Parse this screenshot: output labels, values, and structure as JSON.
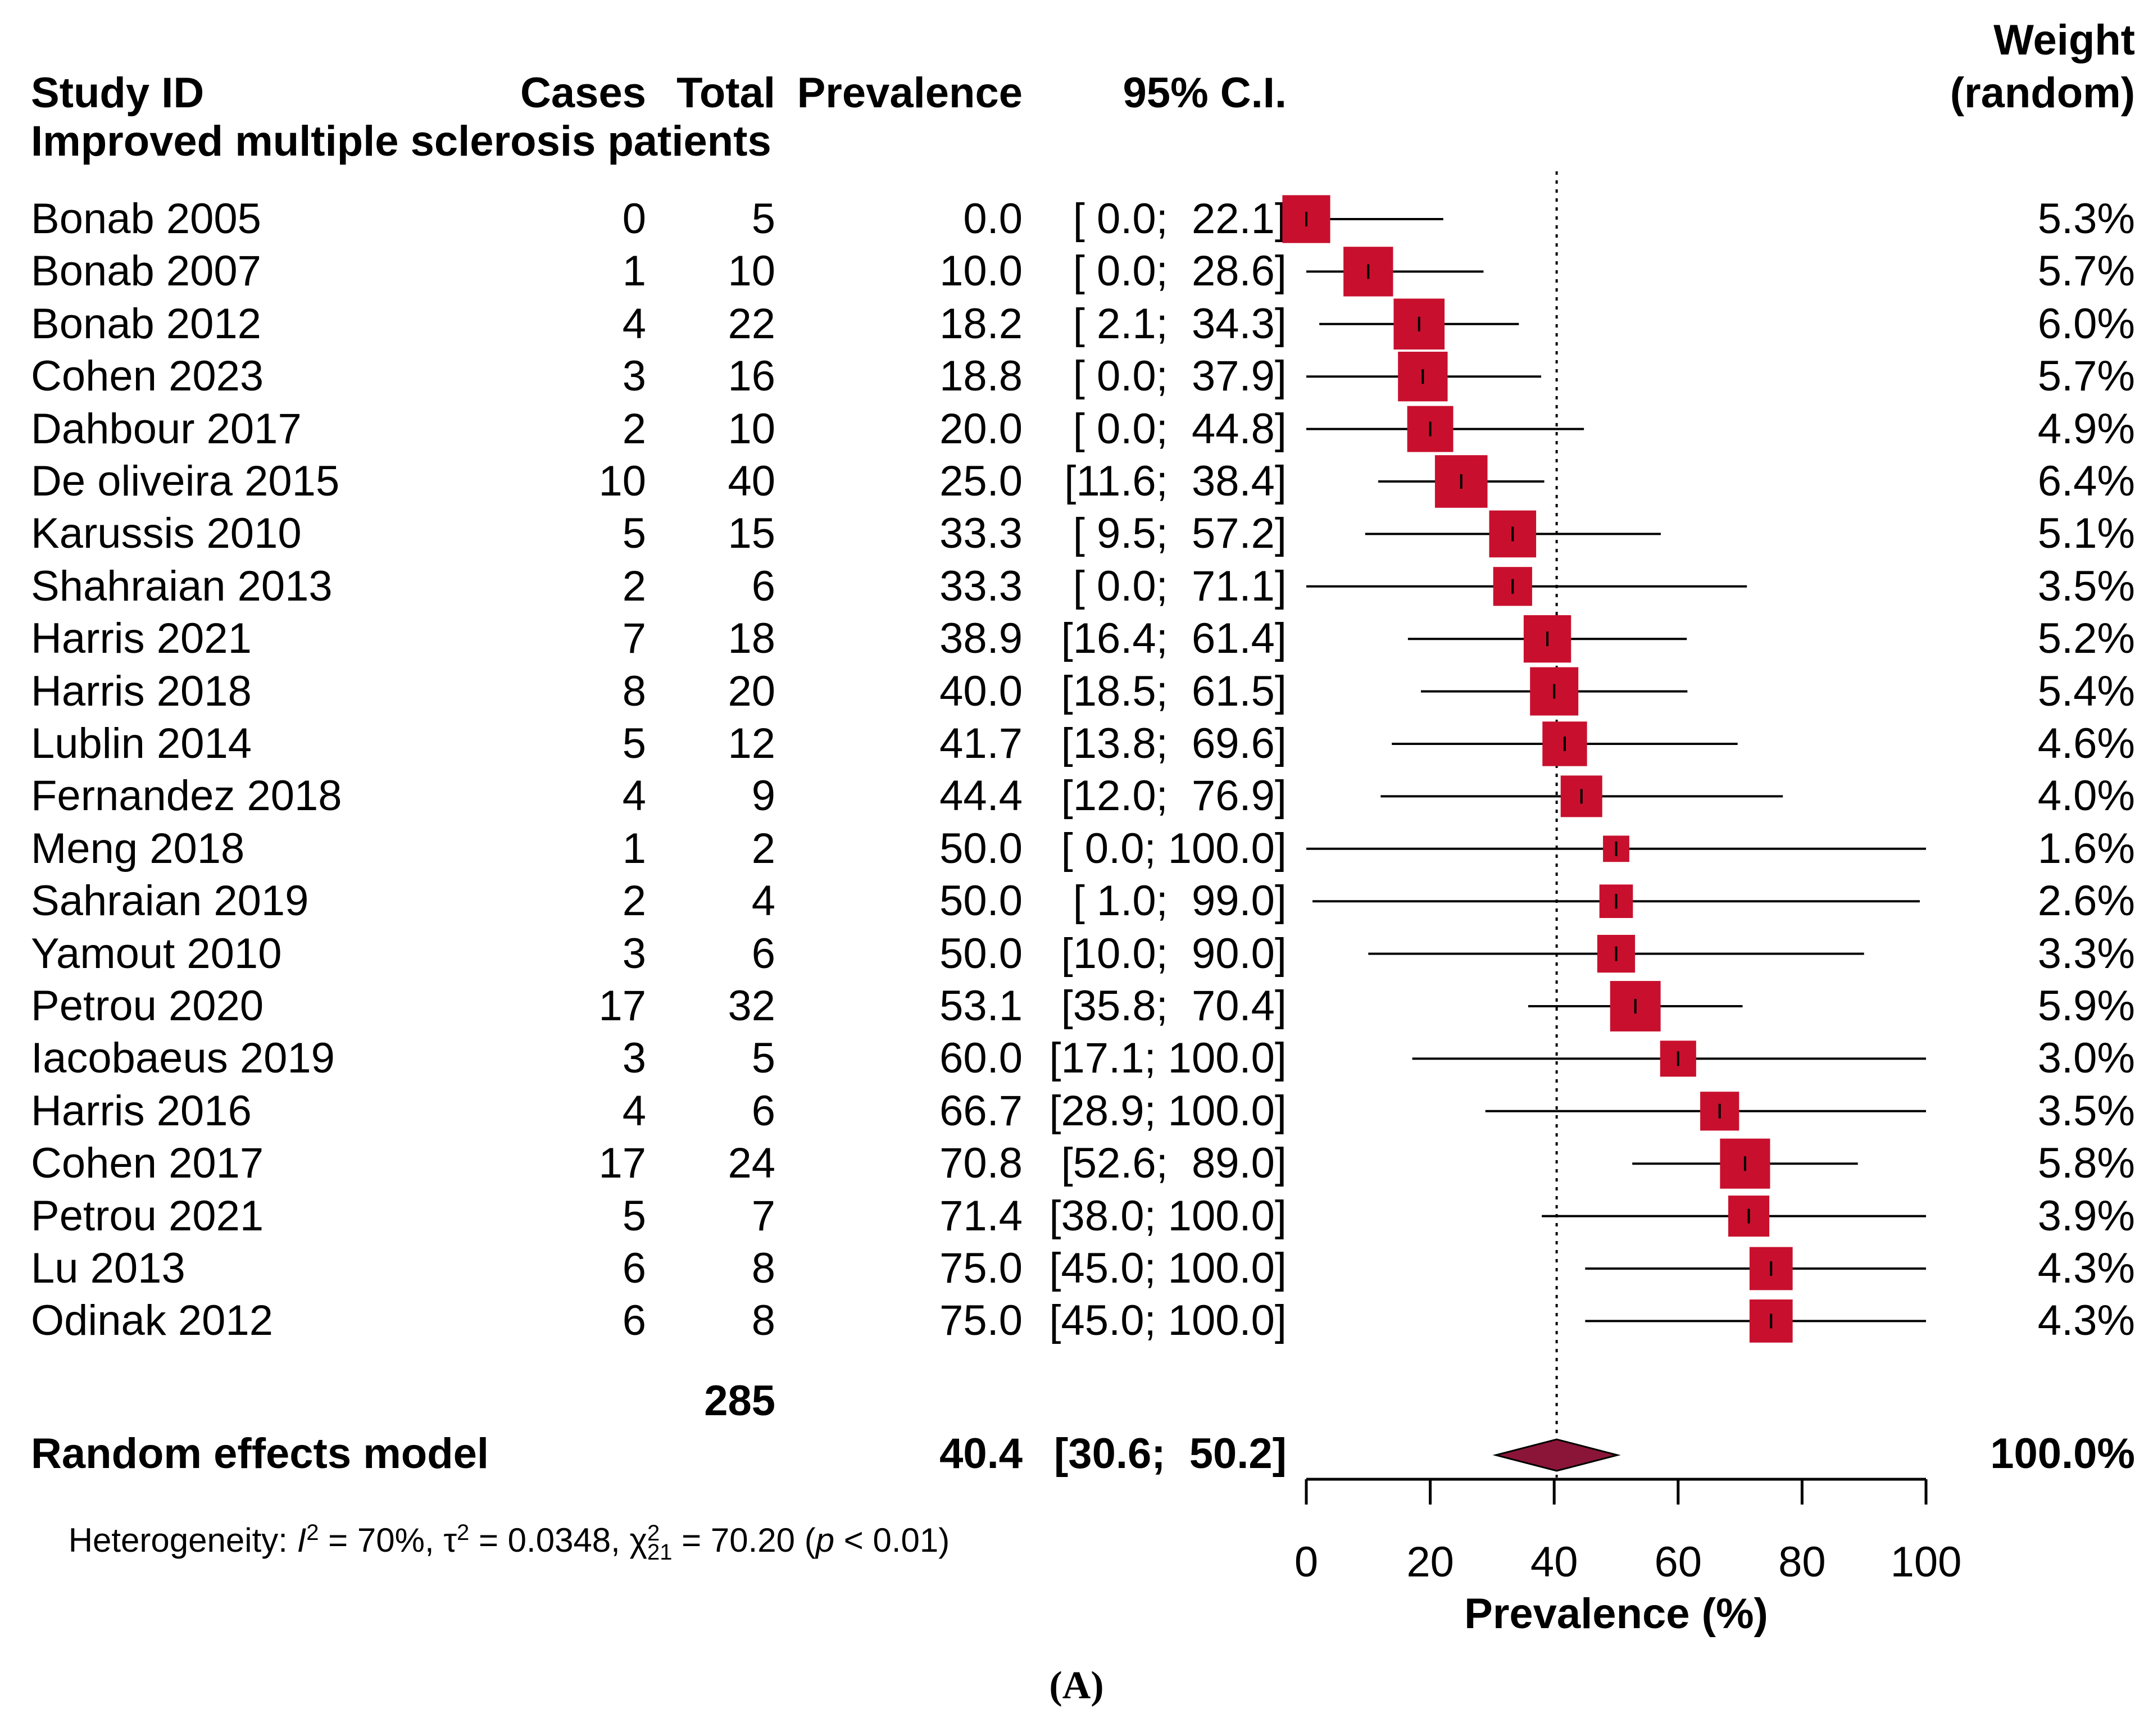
{
  "chart_data": {
    "type": "forest",
    "headers": {
      "study": "Study ID",
      "cases": "Cases",
      "total": "Total",
      "prevalence": "Prevalence",
      "ci": "95% C.I.",
      "weight_line1": "Weight",
      "weight_line2": "(random)"
    },
    "subgroup": "Improved multiple sclerosis patients",
    "studies": [
      {
        "name": "Bonab 2005",
        "cases": "0",
        "total": "5",
        "prev": "0.0",
        "ci": "[ 0.0;  22.1]",
        "weight": "5.3%",
        "est": 0.0,
        "lo": 0.0,
        "hi": 22.1,
        "w": 5.3
      },
      {
        "name": "Bonab 2007",
        "cases": "1",
        "total": "10",
        "prev": "10.0",
        "ci": "[ 0.0;  28.6]",
        "weight": "5.7%",
        "est": 10.0,
        "lo": 0.0,
        "hi": 28.6,
        "w": 5.7
      },
      {
        "name": "Bonab 2012",
        "cases": "4",
        "total": "22",
        "prev": "18.2",
        "ci": "[ 2.1;  34.3]",
        "weight": "6.0%",
        "est": 18.2,
        "lo": 2.1,
        "hi": 34.3,
        "w": 6.0
      },
      {
        "name": "Cohen 2023",
        "cases": "3",
        "total": "16",
        "prev": "18.8",
        "ci": "[ 0.0;  37.9]",
        "weight": "5.7%",
        "est": 18.8,
        "lo": 0.0,
        "hi": 37.9,
        "w": 5.7
      },
      {
        "name": "Dahbour 2017",
        "cases": "2",
        "total": "10",
        "prev": "20.0",
        "ci": "[ 0.0;  44.8]",
        "weight": "4.9%",
        "est": 20.0,
        "lo": 0.0,
        "hi": 44.8,
        "w": 4.9
      },
      {
        "name": "De oliveira 2015",
        "cases": "10",
        "total": "40",
        "prev": "25.0",
        "ci": "[11.6;  38.4]",
        "weight": "6.4%",
        "est": 25.0,
        "lo": 11.6,
        "hi": 38.4,
        "w": 6.4
      },
      {
        "name": "Karussis 2010",
        "cases": "5",
        "total": "15",
        "prev": "33.3",
        "ci": "[ 9.5;  57.2]",
        "weight": "5.1%",
        "est": 33.3,
        "lo": 9.5,
        "hi": 57.2,
        "w": 5.1
      },
      {
        "name": "Shahraian 2013",
        "cases": "2",
        "total": "6",
        "prev": "33.3",
        "ci": "[ 0.0;  71.1]",
        "weight": "3.5%",
        "est": 33.3,
        "lo": 0.0,
        "hi": 71.1,
        "w": 3.5
      },
      {
        "name": "Harris 2021",
        "cases": "7",
        "total": "18",
        "prev": "38.9",
        "ci": "[16.4;  61.4]",
        "weight": "5.2%",
        "est": 38.9,
        "lo": 16.4,
        "hi": 61.4,
        "w": 5.2
      },
      {
        "name": "Harris 2018",
        "cases": "8",
        "total": "20",
        "prev": "40.0",
        "ci": "[18.5;  61.5]",
        "weight": "5.4%",
        "est": 40.0,
        "lo": 18.5,
        "hi": 61.5,
        "w": 5.4
      },
      {
        "name": "Lublin 2014",
        "cases": "5",
        "total": "12",
        "prev": "41.7",
        "ci": "[13.8;  69.6]",
        "weight": "4.6%",
        "est": 41.7,
        "lo": 13.8,
        "hi": 69.6,
        "w": 4.6
      },
      {
        "name": "Fernandez 2018",
        "cases": "4",
        "total": "9",
        "prev": "44.4",
        "ci": "[12.0;  76.9]",
        "weight": "4.0%",
        "est": 44.4,
        "lo": 12.0,
        "hi": 76.9,
        "w": 4.0
      },
      {
        "name": "Meng 2018",
        "cases": "1",
        "total": "2",
        "prev": "50.0",
        "ci": "[ 0.0; 100.0]",
        "weight": "1.6%",
        "est": 50.0,
        "lo": 0.0,
        "hi": 100.0,
        "w": 1.6
      },
      {
        "name": "Sahraian 2019",
        "cases": "2",
        "total": "4",
        "prev": "50.0",
        "ci": "[ 1.0;  99.0]",
        "weight": "2.6%",
        "est": 50.0,
        "lo": 1.0,
        "hi": 99.0,
        "w": 2.6
      },
      {
        "name": "Yamout 2010",
        "cases": "3",
        "total": "6",
        "prev": "50.0",
        "ci": "[10.0;  90.0]",
        "weight": "3.3%",
        "est": 50.0,
        "lo": 10.0,
        "hi": 90.0,
        "w": 3.3
      },
      {
        "name": "Petrou 2020",
        "cases": "17",
        "total": "32",
        "prev": "53.1",
        "ci": "[35.8;  70.4]",
        "weight": "5.9%",
        "est": 53.1,
        "lo": 35.8,
        "hi": 70.4,
        "w": 5.9
      },
      {
        "name": "Iacobaeus 2019",
        "cases": "3",
        "total": "5",
        "prev": "60.0",
        "ci": "[17.1; 100.0]",
        "weight": "3.0%",
        "est": 60.0,
        "lo": 17.1,
        "hi": 100.0,
        "w": 3.0
      },
      {
        "name": "Harris 2016",
        "cases": "4",
        "total": "6",
        "prev": "66.7",
        "ci": "[28.9; 100.0]",
        "weight": "3.5%",
        "est": 66.7,
        "lo": 28.9,
        "hi": 100.0,
        "w": 3.5
      },
      {
        "name": "Cohen 2017",
        "cases": "17",
        "total": "24",
        "prev": "70.8",
        "ci": "[52.6;  89.0]",
        "weight": "5.8%",
        "est": 70.8,
        "lo": 52.6,
        "hi": 89.0,
        "w": 5.8
      },
      {
        "name": "Petrou 2021",
        "cases": "5",
        "total": "7",
        "prev": "71.4",
        "ci": "[38.0; 100.0]",
        "weight": "3.9%",
        "est": 71.4,
        "lo": 38.0,
        "hi": 100.0,
        "w": 3.9
      },
      {
        "name": "Lu 2013",
        "cases": "6",
        "total": "8",
        "prev": "75.0",
        "ci": "[45.0; 100.0]",
        "weight": "4.3%",
        "est": 75.0,
        "lo": 45.0,
        "hi": 100.0,
        "w": 4.3
      },
      {
        "name": "Odinak 2012",
        "cases": "6",
        "total": "8",
        "prev": "75.0",
        "ci": "[45.0; 100.0]",
        "weight": "4.3%",
        "est": 75.0,
        "lo": 45.0,
        "hi": 100.0,
        "w": 4.3
      }
    ],
    "total_n": "285",
    "pooled": {
      "label": "Random effects model",
      "prev": "40.4",
      "ci": "[30.6;  50.2]",
      "weight": "100.0%",
      "est": 40.4,
      "lo": 30.6,
      "hi": 50.2
    },
    "heterogeneity": {
      "prefix": "Heterogeneity: ",
      "i2_sym": "I",
      "i2_val": " = 70%, ",
      "tau_sym": "τ",
      "tau_val": " = 0.0348, ",
      "chi_sym": "χ",
      "chi_df": "21",
      "chi_val": " = 70.20 (",
      "p_sym": "p",
      "p_val": " < 0.01)",
      "sup": "2"
    },
    "xaxis": {
      "label": "Prevalence (%)",
      "ticks": [
        0,
        20,
        40,
        60,
        80,
        100
      ],
      "range": [
        0,
        100
      ]
    },
    "reference_line": 40.4,
    "colors": {
      "square": "#C8102E",
      "diamond": "#8B1538",
      "line": "#000000"
    },
    "caption": "(A)"
  }
}
